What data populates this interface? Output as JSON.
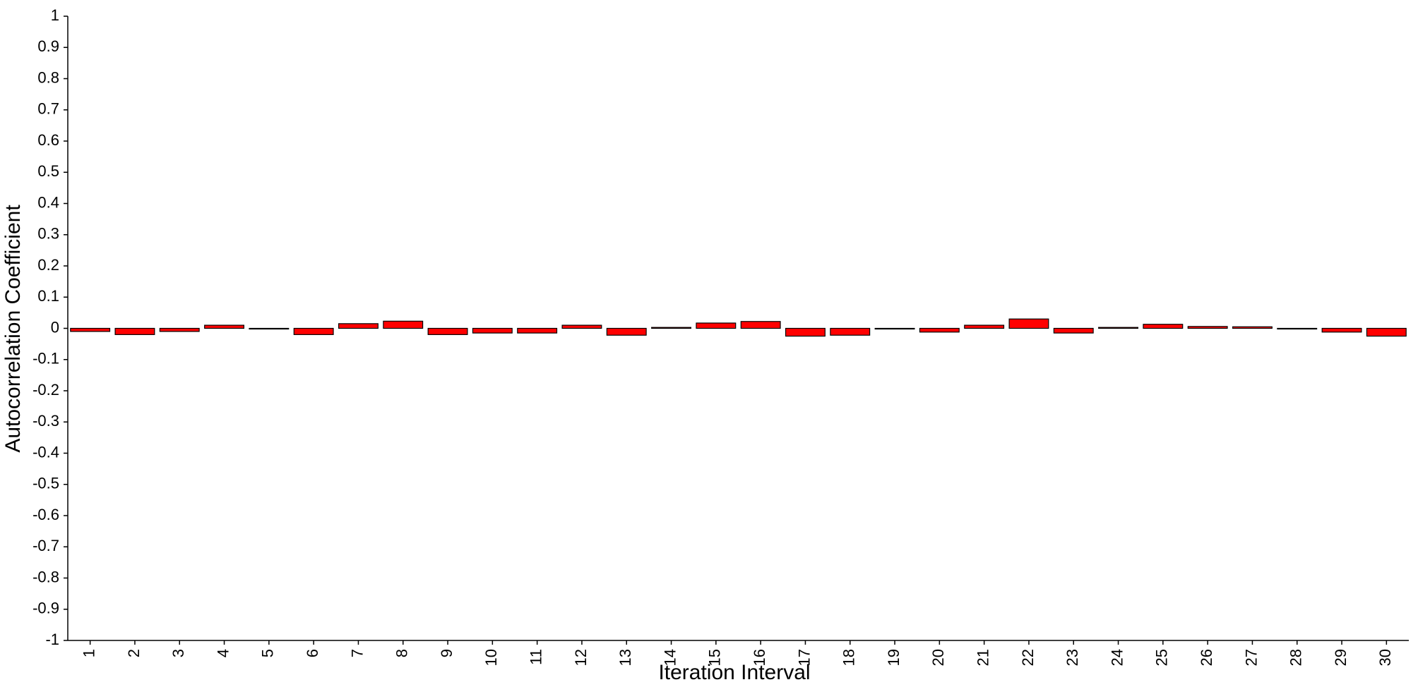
{
  "chart_data": {
    "type": "bar",
    "x_label": "Iteration Interval",
    "y_label": "Autocorrelation Coefficient",
    "categories": [
      "1",
      "2",
      "3",
      "4",
      "5",
      "6",
      "7",
      "8",
      "9",
      "10",
      "11",
      "12",
      "13",
      "14",
      "15",
      "16",
      "17",
      "18",
      "19",
      "20",
      "21",
      "22",
      "23",
      "24",
      "25",
      "26",
      "27",
      "28",
      "29",
      "30"
    ],
    "values": [
      -0.01,
      -0.02,
      -0.01,
      0.01,
      0,
      -0.02,
      0.015,
      0.023,
      -0.02,
      -0.015,
      -0.015,
      0.01,
      -0.022,
      0.003,
      0.017,
      0.022,
      -0.025,
      -0.022,
      0,
      -0.012,
      0.01,
      0.03,
      -0.015,
      0.003,
      0.013,
      0.006,
      0.005,
      0,
      -0.012,
      -0.025
    ],
    "color": "#ff0000",
    "ylim": [
      -1,
      1
    ],
    "yticks": [
      -1,
      -0.9,
      -0.8,
      -0.7,
      -0.6,
      -0.5,
      -0.4,
      -0.3,
      -0.2,
      -0.1,
      0,
      0.1,
      0.2,
      0.3,
      0.4,
      0.5,
      0.6,
      0.7,
      0.8,
      0.9,
      1
    ],
    "grid": false
  }
}
